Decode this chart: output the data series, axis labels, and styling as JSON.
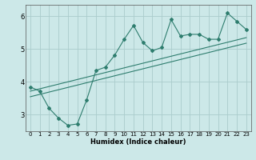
{
  "title": "",
  "xlabel": "Humidex (Indice chaleur)",
  "ylabel": "",
  "bg_color": "#cce8e8",
  "grid_color": "#aacccc",
  "line_color": "#2e7d6e",
  "xlim": [
    -0.5,
    23.5
  ],
  "ylim": [
    2.5,
    6.35
  ],
  "yticks": [
    3,
    4,
    5,
    6
  ],
  "xticks": [
    0,
    1,
    2,
    3,
    4,
    5,
    6,
    7,
    8,
    9,
    10,
    11,
    12,
    13,
    14,
    15,
    16,
    17,
    18,
    19,
    20,
    21,
    22,
    23
  ],
  "data_x": [
    0,
    1,
    2,
    3,
    4,
    5,
    6,
    7,
    8,
    9,
    10,
    11,
    12,
    13,
    14,
    15,
    16,
    17,
    18,
    19,
    20,
    21,
    22,
    23
  ],
  "data_y": [
    3.85,
    3.72,
    3.2,
    2.9,
    2.68,
    2.72,
    3.45,
    4.35,
    4.45,
    4.82,
    5.3,
    5.72,
    5.2,
    4.95,
    5.05,
    5.9,
    5.4,
    5.45,
    5.45,
    5.3,
    5.3,
    6.1,
    5.85,
    5.6
  ],
  "reg_line1_x": [
    0,
    23
  ],
  "reg_line1_y": [
    3.72,
    5.35
  ],
  "reg_line2_x": [
    0,
    23
  ],
  "reg_line2_y": [
    3.55,
    5.18
  ],
  "xlabel_fontsize": 6,
  "ytick_fontsize": 6,
  "xtick_fontsize": 5
}
